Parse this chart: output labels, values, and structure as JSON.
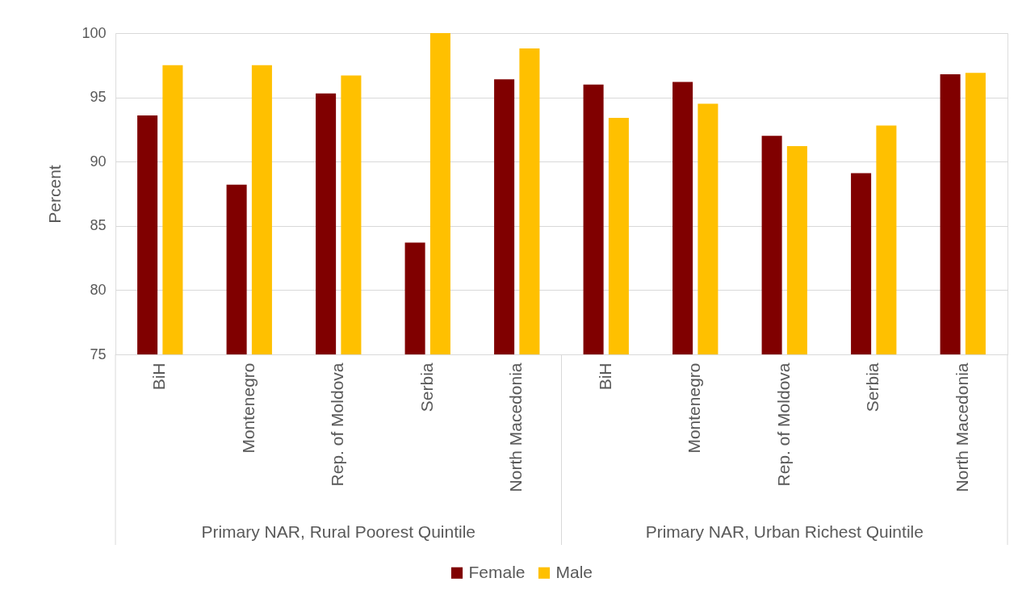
{
  "chart_data": {
    "type": "bar",
    "ylabel": "Percent",
    "categories": [
      "BiH",
      "Montenegro",
      "Rep. of Moldova",
      "Serbia",
      "North Macedonia",
      "BiH",
      "Montenegro",
      "Rep. of Moldova",
      "Serbia",
      "North Macedonia"
    ],
    "series": [
      {
        "name": "Female",
        "color": "#800000",
        "values": [
          93.6,
          88.2,
          95.3,
          83.7,
          96.4,
          96.0,
          96.2,
          92.0,
          89.1,
          96.8
        ]
      },
      {
        "name": "Male",
        "color": "#ffc000",
        "values": [
          97.5,
          97.5,
          96.7,
          100,
          98.8,
          93.4,
          94.5,
          91.2,
          92.8,
          96.9
        ]
      }
    ],
    "ylim": [
      75,
      100
    ],
    "yticks": [
      75,
      80,
      85,
      90,
      95,
      100
    ],
    "grid": "y",
    "legend": "bottom",
    "annotations": [
      "Primary NAR, Rural Poorest Quintile",
      "Primary NAR, Urban Richest Quintile"
    ]
  }
}
